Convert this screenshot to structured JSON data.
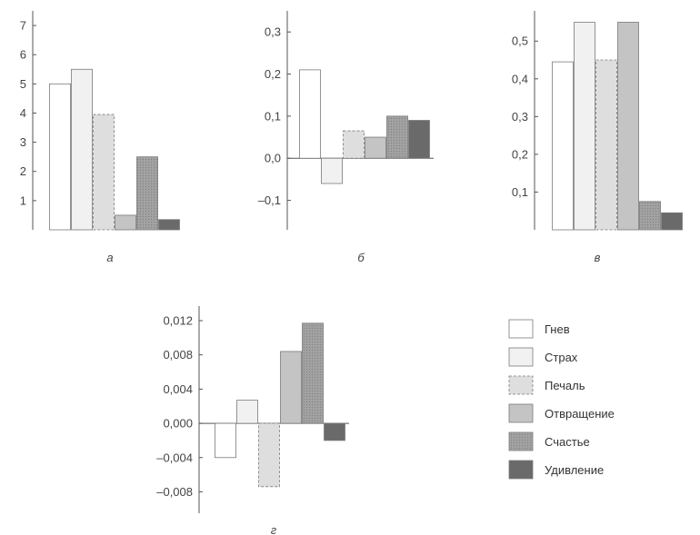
{
  "categories": [
    "Гнев",
    "Страх",
    "Печаль",
    "Отвращение",
    "Счастье",
    "Удивление"
  ],
  "series_colors": [
    "#ffffff",
    "#f1f1f1",
    "#dedede",
    "#c4c4c4",
    "#9c9c9c",
    "#6a6a6a"
  ],
  "chart_data": [
    {
      "type": "bar",
      "title": "",
      "panel_label": "а",
      "categories": [
        "Гнев",
        "Страх",
        "Печаль",
        "Отвращение",
        "Счастье",
        "Удивление"
      ],
      "values": [
        5.0,
        5.5,
        3.95,
        0.5,
        2.5,
        0.35
      ],
      "ylim": [
        0,
        7.5
      ],
      "yticks": [
        1,
        2,
        3,
        4,
        5,
        6,
        7
      ],
      "ytick_labels": [
        "1",
        "2",
        "3",
        "4",
        "5",
        "6",
        "7"
      ],
      "grid": false
    },
    {
      "type": "bar",
      "title": "",
      "panel_label": "б",
      "categories": [
        "Гнев",
        "Страх",
        "Печаль",
        "Отвращение",
        "Счастье",
        "Удивление"
      ],
      "values": [
        0.21,
        -0.06,
        0.065,
        0.05,
        0.1,
        0.09
      ],
      "ylim": [
        -0.17,
        0.35
      ],
      "yticks": [
        -0.1,
        0.0,
        0.1,
        0.2,
        0.3
      ],
      "ytick_labels": [
        "–0,1",
        "0,0",
        "0,1",
        "0,2",
        "0,3"
      ],
      "grid": false
    },
    {
      "type": "bar",
      "title": "",
      "panel_label": "в",
      "categories": [
        "Гнев",
        "Страх",
        "Печаль",
        "Отвращение",
        "Счастье",
        "Удивление"
      ],
      "values": [
        0.445,
        0.55,
        0.45,
        0.55,
        0.075,
        0.045
      ],
      "ylim": [
        0,
        0.58
      ],
      "yticks": [
        0.1,
        0.2,
        0.3,
        0.4,
        0.5
      ],
      "ytick_labels": [
        "0,1",
        "0,2",
        "0,3",
        "0,4",
        "0,5"
      ],
      "grid": false
    },
    {
      "type": "bar",
      "title": "",
      "panel_label": "г",
      "categories": [
        "Гнев",
        "Страх",
        "Печаль",
        "Отвращение",
        "Счастье",
        "Удивление"
      ],
      "values": [
        -0.004,
        0.0027,
        -0.0074,
        0.0084,
        0.0117,
        -0.002
      ],
      "ylim": [
        -0.0105,
        0.0137
      ],
      "yticks": [
        -0.008,
        -0.004,
        0.0,
        0.004,
        0.008,
        0.012
      ],
      "ytick_labels": [
        "–0,008",
        "–0,004",
        "0,000",
        "0,004",
        "0,008",
        "0,012"
      ],
      "grid": false
    }
  ],
  "legend": {
    "placement": "right",
    "items": [
      "Гнев",
      "Страх",
      "Печаль",
      "Отвращение",
      "Счастье",
      "Удивление"
    ]
  }
}
